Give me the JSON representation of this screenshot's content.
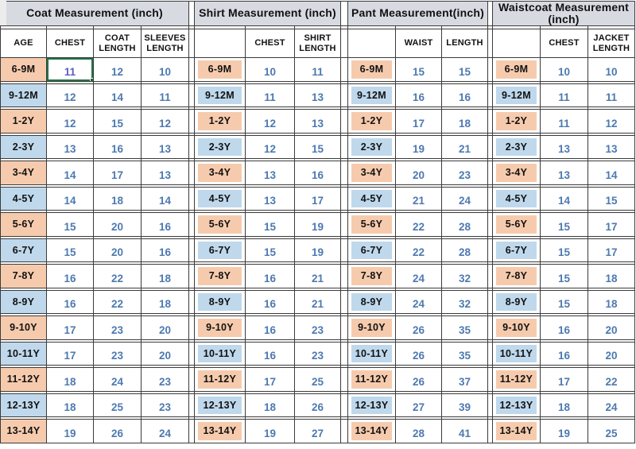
{
  "sheet": {
    "kind": "spreadsheet-size-chart"
  },
  "colors": {
    "title_bg": "#d7dae1",
    "row_peach": "#f6cbad",
    "row_blue": "#bfd8ec",
    "number_text": "#4d79b0",
    "selected_number_text": "#5c5cc4",
    "border": "#3b3b3b",
    "selection_green": "#217346",
    "header_text": "#111111",
    "corner_gray": "#ececec"
  },
  "ages": [
    "6-9M",
    "9-12M",
    "1-2Y",
    "2-3Y",
    "3-4Y",
    "4-5Y",
    "5-6Y",
    "6-7Y",
    "7-8Y",
    "8-9Y",
    "9-10Y",
    "10-11Y",
    "11-12Y",
    "12-13Y",
    "13-14Y"
  ],
  "sections": [
    {
      "id": "coat",
      "title": "Coat Measurement (inch)",
      "age_header": "AGE",
      "columns": [
        "CHEST",
        "COAT\nLENGTH",
        "SLEEVES\nLENGTH"
      ],
      "rows": [
        [
          11,
          12,
          10
        ],
        [
          12,
          14,
          11
        ],
        [
          12,
          15,
          12
        ],
        [
          13,
          16,
          13
        ],
        [
          14,
          17,
          13
        ],
        [
          14,
          18,
          14
        ],
        [
          15,
          20,
          16
        ],
        [
          15,
          20,
          16
        ],
        [
          16,
          22,
          18
        ],
        [
          16,
          22,
          18
        ],
        [
          17,
          23,
          20
        ],
        [
          17,
          23,
          20
        ],
        [
          18,
          24,
          23
        ],
        [
          18,
          25,
          23
        ],
        [
          19,
          26,
          24
        ]
      ]
    },
    {
      "id": "shirt",
      "title": "Shirt Measurement (inch)",
      "age_header": "",
      "columns": [
        "CHEST",
        "SHIRT\nLENGTH"
      ],
      "rows": [
        [
          10,
          11
        ],
        [
          11,
          13
        ],
        [
          12,
          13
        ],
        [
          12,
          15
        ],
        [
          13,
          16
        ],
        [
          13,
          17
        ],
        [
          15,
          19
        ],
        [
          15,
          19
        ],
        [
          16,
          21
        ],
        [
          16,
          21
        ],
        [
          16,
          23
        ],
        [
          16,
          23
        ],
        [
          17,
          25
        ],
        [
          18,
          26
        ],
        [
          19,
          27
        ]
      ]
    },
    {
      "id": "pant",
      "title": "Pant Measurement(inch)",
      "age_header": "",
      "columns": [
        "WAIST",
        "LENGTH"
      ],
      "rows": [
        [
          15,
          15
        ],
        [
          16,
          16
        ],
        [
          17,
          18
        ],
        [
          19,
          21
        ],
        [
          20,
          23
        ],
        [
          21,
          24
        ],
        [
          22,
          28
        ],
        [
          22,
          28
        ],
        [
          24,
          32
        ],
        [
          24,
          32
        ],
        [
          26,
          35
        ],
        [
          26,
          35
        ],
        [
          26,
          37
        ],
        [
          27,
          39
        ],
        [
          28,
          41
        ]
      ]
    },
    {
      "id": "waistcoat",
      "title": "Waistcoat Measurement (inch)",
      "age_header": "",
      "columns": [
        "CHEST",
        "JACKET\nLENGTH"
      ],
      "rows": [
        [
          10,
          10
        ],
        [
          11,
          11
        ],
        [
          11,
          12
        ],
        [
          13,
          13
        ],
        [
          13,
          14
        ],
        [
          14,
          15
        ],
        [
          15,
          17
        ],
        [
          15,
          17
        ],
        [
          15,
          18
        ],
        [
          15,
          18
        ],
        [
          16,
          20
        ],
        [
          16,
          20
        ],
        [
          17,
          22
        ],
        [
          18,
          24
        ],
        [
          19,
          25
        ]
      ]
    }
  ],
  "selection": {
    "section": "coat",
    "age": "6-9M",
    "column": "CHEST",
    "value": 11
  }
}
